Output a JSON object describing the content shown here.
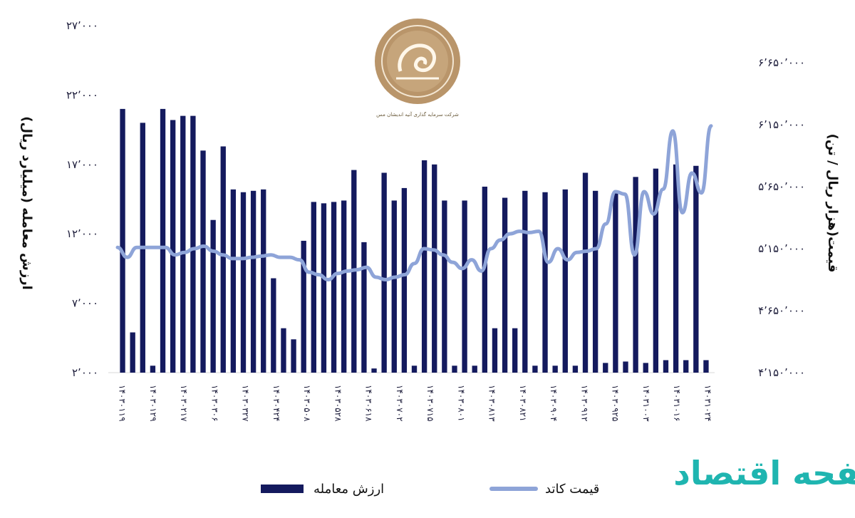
{
  "chart_data": {
    "type": "bar",
    "left_axis": {
      "label": "ارزش معامله (میلیارد ریال)",
      "ticks": [
        "۲٬۰۰۰",
        "۷٬۰۰۰",
        "۱۲٬۰۰۰",
        "۱۷٬۰۰۰",
        "۲۲٬۰۰۰",
        "۲۷٬۰۰۰"
      ],
      "tick_values": [
        2000,
        7000,
        12000,
        17000,
        22000,
        27000
      ],
      "ylim": [
        2000,
        27000
      ]
    },
    "right_axis": {
      "label": "قیمت(هزار ریال / تن)",
      "ticks": [
        "۴٬۱۵۰٬۰۰۰",
        "۴٬۶۵۰٬۰۰۰",
        "۵٬۱۵۰٬۰۰۰",
        "۵٬۶۵۰٬۰۰۰",
        "۶٬۱۵۰٬۰۰۰",
        "۶٬۶۵۰٬۰۰۰"
      ],
      "tick_values": [
        4150000,
        4650000,
        5150000,
        5650000,
        6150000,
        6650000
      ],
      "ylim": [
        4150000,
        6850000
      ]
    },
    "x_tick_labels": [
      "۱۴۰۳۰۱۱۹",
      "۱۴۰۳۰۱۲۹",
      "۱۴۰۳۰۲۱۷",
      "۱۴۰۳۰۳۰۶",
      "۱۴۰۳۰۳۲۷",
      "۱۴۰۳۰۴۲۴",
      "۱۴۰۳۰۵۰۸",
      "۱۴۰۳۰۵۲۸",
      "۱۴۰۳۰۶۱۸",
      "۱۴۰۳۰۷۰۲",
      "۱۴۰۳۰۷۱۵",
      "۱۴۰۳۰۸۰۱",
      "۱۴۰۳۰۸۱۳",
      "۱۴۰۳۰۸۲۱",
      "۱۴۰۳۰۹۰۴",
      "۱۴۰۳۰۹۱۲",
      "۱۴۰۳۰۹۲۵",
      "۱۴۰۳۱۰۰۳",
      "۱۴۰۳۱۰۱۶",
      "۱۴۰۳۱۰۲۴"
    ],
    "series": [
      {
        "name": "ارزش معامله",
        "kind": "bar",
        "color": "#141a5e",
        "values": [
          21000,
          4900,
          20000,
          2500,
          21000,
          20200,
          20500,
          20500,
          18000,
          13000,
          18300,
          15200,
          15000,
          15100,
          15200,
          8800,
          5200,
          4400,
          11500,
          14300,
          14200,
          14300,
          14400,
          16600,
          11400,
          2300,
          16400,
          14400,
          15300,
          2500,
          17300,
          17000,
          14400,
          2500,
          14400,
          2500,
          15400,
          5200,
          14600,
          5200,
          15100,
          2500,
          15000,
          2500,
          15200,
          2500,
          16400,
          15100,
          2700,
          15000,
          2800,
          16100,
          2700,
          16700,
          2900,
          17000,
          2900,
          16900,
          2900
        ],
        "zero_gaps": [
          5,
          9,
          11,
          13,
          15,
          17,
          19,
          21,
          23,
          26,
          28,
          31,
          34,
          36,
          39,
          41,
          43,
          46,
          48,
          50,
          52,
          55,
          57
        ]
      },
      {
        "name": "قیمت کاتد",
        "kind": "line",
        "color": "#8ea4d8",
        "values": [
          5160000,
          5080000,
          5160000,
          5160000,
          5160000,
          5160000,
          5100000,
          5120000,
          5150000,
          5170000,
          5130000,
          5100000,
          5070000,
          5070000,
          5080000,
          5090000,
          5100000,
          5080000,
          5080000,
          5060000,
          4960000,
          4940000,
          4900000,
          4950000,
          4970000,
          4980000,
          5000000,
          4920000,
          4900000,
          4920000,
          4940000,
          5030000,
          5150000,
          5140000,
          5100000,
          5040000,
          4990000,
          5060000,
          4970000,
          5150000,
          5220000,
          5270000,
          5290000,
          5280000,
          5290000,
          5040000,
          5150000,
          5060000,
          5120000,
          5130000,
          5150000,
          5350000,
          5610000,
          5590000,
          5100000,
          5610000,
          5430000,
          5630000,
          6100000,
          5440000,
          5760000,
          5600000,
          6140000
        ]
      }
    ]
  },
  "legend": {
    "bar_label": "ارزش معامله",
    "line_label": "قیمت  کاتد"
  },
  "logo": {
    "caption": "شرکت سرمایه گذاری آتیه اندیشان مس"
  },
  "watermark": {
    "text": "صفحه اقتصاد"
  }
}
